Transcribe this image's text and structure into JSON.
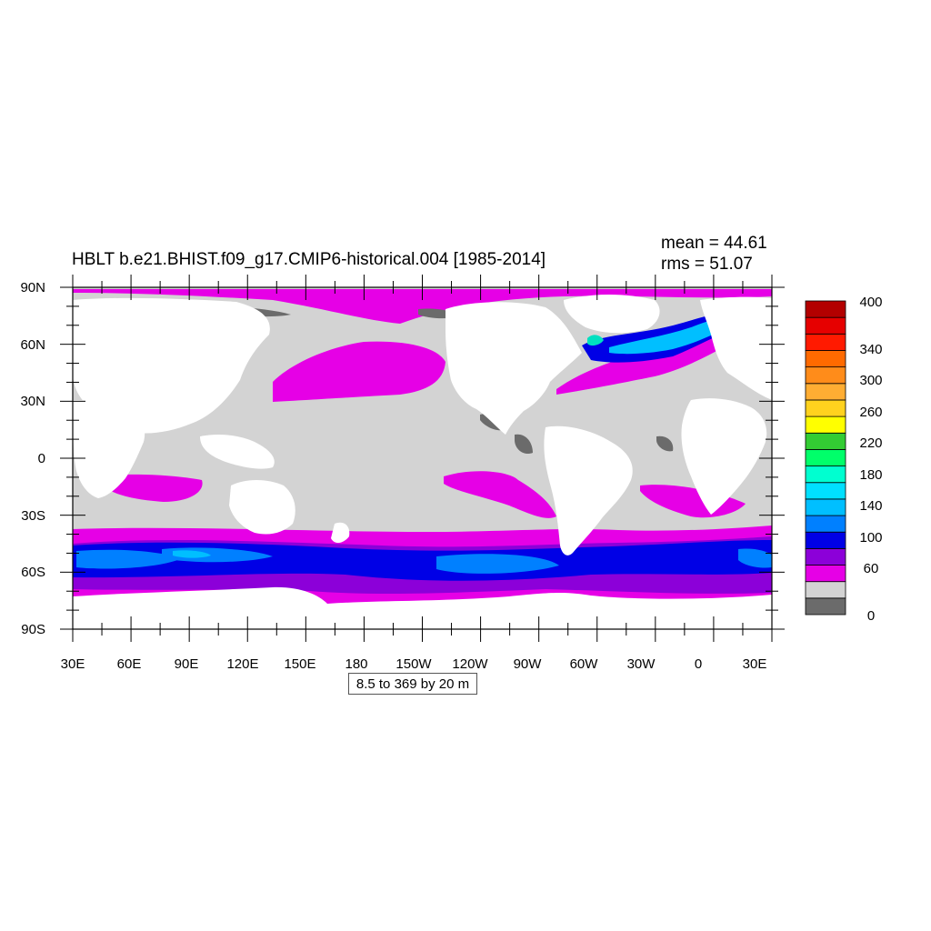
{
  "header": {
    "title": "HBLT b.e21.BHIST.f09_g17.CMIP6-historical.004 [1985-2014]",
    "mean_label": "mean = 44.61",
    "rms_label": "rms = 51.07"
  },
  "map": {
    "lon_ticks": [
      "30E",
      "60E",
      "90E",
      "120E",
      "150E",
      "180",
      "150W",
      "120W",
      "90W",
      "60W",
      "30W",
      "0",
      "30E"
    ],
    "lat_ticks": [
      "90N",
      "60N",
      "30N",
      "0",
      "30S",
      "60S",
      "90S"
    ],
    "contour_info": "8.5 to 369 by 20 m",
    "colors": {
      "land": "#ffffff",
      "level_0": "#6b6b6b",
      "level_1": "#d3d3d3",
      "level_2": "#e600e6",
      "level_3": "#8c00d9",
      "level_4": "#0000e6",
      "level_5": "#0080ff",
      "level_6": "#00bfff"
    }
  },
  "colorbar": {
    "colors": [
      "#6b6b6b",
      "#d3d3d3",
      "#e600e6",
      "#8c00d9",
      "#0000e6",
      "#0080ff",
      "#00bfff",
      "#00e0ff",
      "#00ffd0",
      "#00ff6a",
      "#33cc33",
      "#ffff00",
      "#ffd21e",
      "#ffad33",
      "#ff8c1a",
      "#ff6a00",
      "#ff1a00",
      "#e60000",
      "#b30000"
    ],
    "labels": [
      "0",
      "60",
      "100",
      "140",
      "180",
      "220",
      "260",
      "300",
      "340",
      "400"
    ]
  }
}
